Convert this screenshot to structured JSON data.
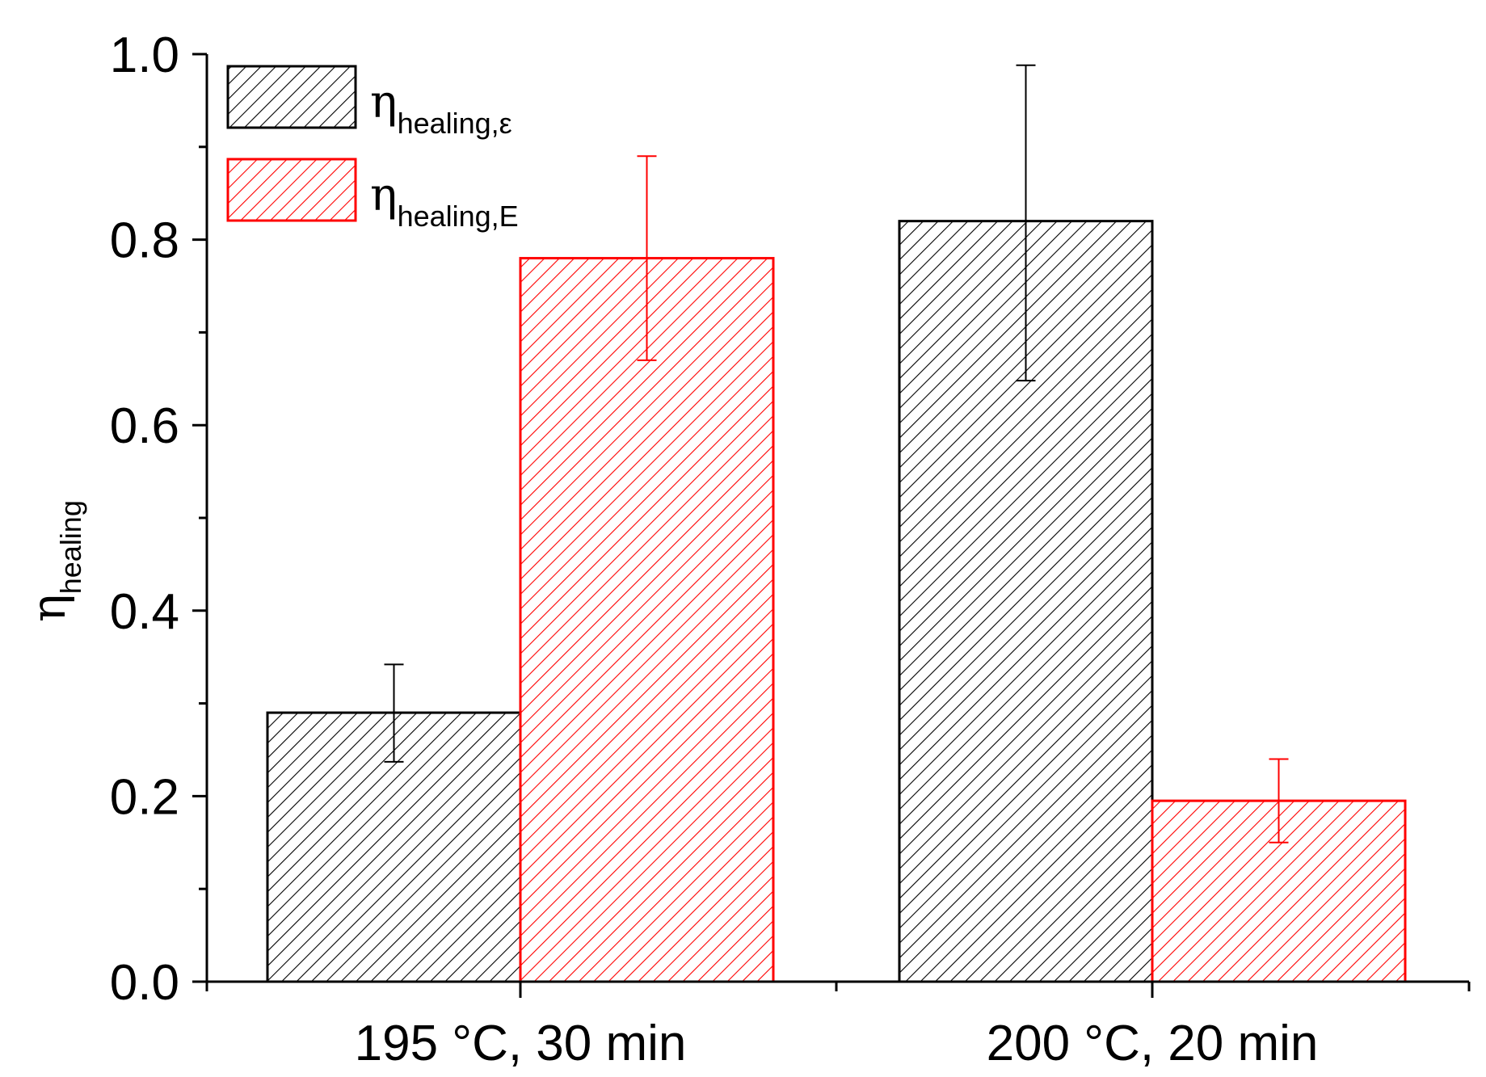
{
  "chart_data": {
    "type": "bar",
    "title": "",
    "xlabel": "",
    "ylabel": {
      "symbol": "η",
      "subscript": "healing"
    },
    "ylim": [
      0.0,
      1.0
    ],
    "yticks": [
      "0.0",
      "0.2",
      "0.4",
      "0.6",
      "0.8",
      "1.0"
    ],
    "categories": [
      "195 °C, 30 min",
      "200 °C, 20 min"
    ],
    "series": [
      {
        "name": "ηhealing,ε",
        "symbol": "η",
        "subscript": "healing,ε",
        "color": "#000000",
        "values": [
          0.29,
          0.82
        ],
        "error_low": [
          0.237,
          0.648
        ],
        "error_high": [
          0.342,
          0.988
        ]
      },
      {
        "name": "ηhealing,E",
        "symbol": "η",
        "subscript": "healing,E",
        "color": "#ff0000",
        "values": [
          0.78,
          0.195
        ],
        "error_low": [
          0.67,
          0.15
        ],
        "error_high": [
          0.89,
          0.24
        ]
      }
    ],
    "legend_position": "top-left",
    "grid": false
  }
}
